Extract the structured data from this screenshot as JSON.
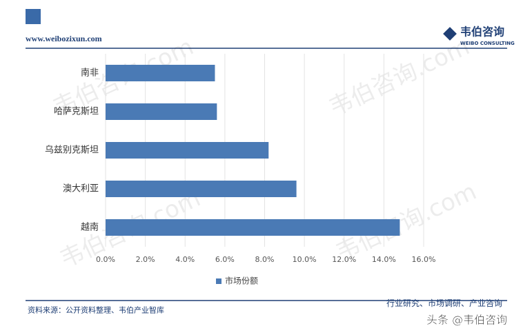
{
  "header": {
    "url": "www.weibozixun.com",
    "brand": "韦伯咨询",
    "brand_en": "WEIBO CONSULTING"
  },
  "chart_data": {
    "type": "bar",
    "orientation": "horizontal",
    "categories": [
      "南非",
      "哈萨克斯坦",
      "乌兹别克斯坦",
      "澳大利亚",
      "越南"
    ],
    "series": [
      {
        "name": "市场份额",
        "color": "#4a7ab5",
        "values": [
          5.5,
          5.6,
          8.2,
          9.6,
          14.8
        ]
      }
    ],
    "xlim": [
      0,
      16
    ],
    "xticks": [
      {
        "value": 0,
        "label": "0.0%"
      },
      {
        "value": 2,
        "label": "2.0%"
      },
      {
        "value": 4,
        "label": "4.0%"
      },
      {
        "value": 6,
        "label": "6.0%"
      },
      {
        "value": 8,
        "label": "8.0%"
      },
      {
        "value": 10,
        "label": "10.0%"
      },
      {
        "value": 12,
        "label": "12.0%"
      },
      {
        "value": 14,
        "label": "14.0%"
      },
      {
        "value": 16,
        "label": "16.0%"
      }
    ],
    "grid": true,
    "legend": "bottom"
  },
  "footer": {
    "source": "资料来源：公开资料整理、韦伯产业智库",
    "tagline": "行业研究、市场调研、产业咨询"
  },
  "watermark": "韦伯咨询.com",
  "overlay": "头条 @韦伯咨询"
}
